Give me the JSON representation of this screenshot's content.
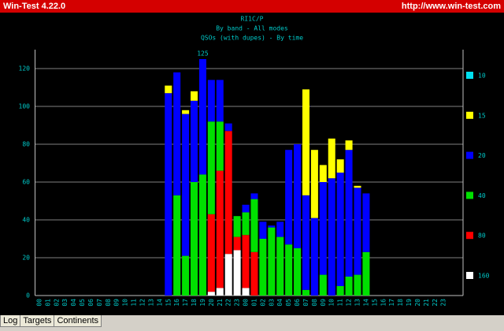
{
  "window": {
    "title": "Win-Test 4.22.0",
    "url": "http://www.win-test.com"
  },
  "tabs": [
    "Log",
    "Targets",
    "Continents"
  ],
  "chart_data": {
    "type": "stacked_bar",
    "title": "RI1C/P",
    "subtitle": "By band - All modes",
    "subtitle2": "QSOs (with dupes) - By time",
    "annotation": "125",
    "categories": [
      "00",
      "01",
      "02",
      "03",
      "04",
      "05",
      "06",
      "07",
      "08",
      "09",
      "10",
      "11",
      "12",
      "13",
      "14",
      "15",
      "16",
      "17",
      "18",
      "19",
      "20",
      "21",
      "22",
      "23",
      "00",
      "01",
      "02",
      "03",
      "04",
      "05",
      "06",
      "07",
      "08",
      "09",
      "10",
      "11",
      "12",
      "13",
      "14",
      "15",
      "16",
      "17",
      "18",
      "19",
      "20",
      "21",
      "22",
      "23"
    ],
    "series": [
      {
        "name": "10",
        "color": "#00e0f0",
        "values": [
          0,
          0,
          0,
          0,
          0,
          0,
          0,
          0,
          0,
          0,
          0,
          0,
          0,
          0,
          0,
          0,
          0,
          0,
          0,
          0,
          0,
          0,
          0,
          0,
          0,
          0,
          0,
          0,
          0,
          0,
          0,
          0,
          0,
          0,
          0,
          0,
          0,
          0,
          0,
          0,
          0,
          0,
          0,
          0,
          0,
          0,
          0,
          0
        ]
      },
      {
        "name": "15",
        "color": "#ffff00",
        "values": [
          0,
          0,
          0,
          0,
          0,
          0,
          0,
          0,
          0,
          0,
          0,
          0,
          0,
          0,
          0,
          4,
          0,
          2,
          5,
          0,
          0,
          0,
          0,
          0,
          0,
          0,
          0,
          0,
          0,
          0,
          0,
          56,
          36,
          9,
          21,
          7,
          5,
          1,
          0,
          0,
          0,
          0,
          0,
          0,
          0,
          0,
          0,
          0
        ]
      },
      {
        "name": "20",
        "color": "#0000ff",
        "values": [
          0,
          0,
          0,
          0,
          0,
          0,
          0,
          0,
          0,
          0,
          0,
          0,
          0,
          0,
          0,
          107,
          65,
          75,
          43,
          61,
          22,
          22,
          4,
          0,
          4,
          3,
          9,
          1,
          8,
          50,
          55,
          50,
          41,
          49,
          62,
          60,
          67,
          46,
          31,
          0,
          0,
          0,
          0,
          0,
          0,
          0,
          0,
          0
        ]
      },
      {
        "name": "40",
        "color": "#00e000",
        "values": [
          0,
          0,
          0,
          0,
          0,
          0,
          0,
          0,
          0,
          0,
          0,
          0,
          0,
          0,
          0,
          0,
          53,
          21,
          60,
          64,
          49,
          26,
          0,
          11,
          12,
          28,
          30,
          36,
          31,
          27,
          25,
          3,
          0,
          11,
          0,
          5,
          10,
          11,
          23,
          0,
          0,
          0,
          0,
          0,
          0,
          0,
          0,
          0
        ]
      },
      {
        "name": "80",
        "color": "#ff0000",
        "values": [
          0,
          0,
          0,
          0,
          0,
          0,
          0,
          0,
          0,
          0,
          0,
          0,
          0,
          0,
          0,
          0,
          0,
          0,
          0,
          0,
          41,
          62,
          65,
          7,
          28,
          23,
          0,
          0,
          0,
          0,
          0,
          0,
          0,
          0,
          0,
          0,
          0,
          0,
          0,
          0,
          0,
          0,
          0,
          0,
          0,
          0,
          0,
          0
        ]
      },
      {
        "name": "160",
        "color": "#ffffff",
        "values": [
          0,
          0,
          0,
          0,
          0,
          0,
          0,
          0,
          0,
          0,
          0,
          0,
          0,
          0,
          0,
          0,
          0,
          0,
          0,
          0,
          2,
          4,
          22,
          24,
          4,
          0,
          0,
          0,
          0,
          0,
          0,
          0,
          0,
          0,
          0,
          0,
          0,
          0,
          0,
          0,
          0,
          0,
          0,
          0,
          0,
          0,
          0,
          0
        ]
      }
    ],
    "ylim": [
      0,
      130
    ],
    "yticks": [
      0,
      20,
      40,
      60,
      80,
      100,
      120
    ],
    "grid": true,
    "legend": "right",
    "axis_color": "#00c8c8"
  }
}
